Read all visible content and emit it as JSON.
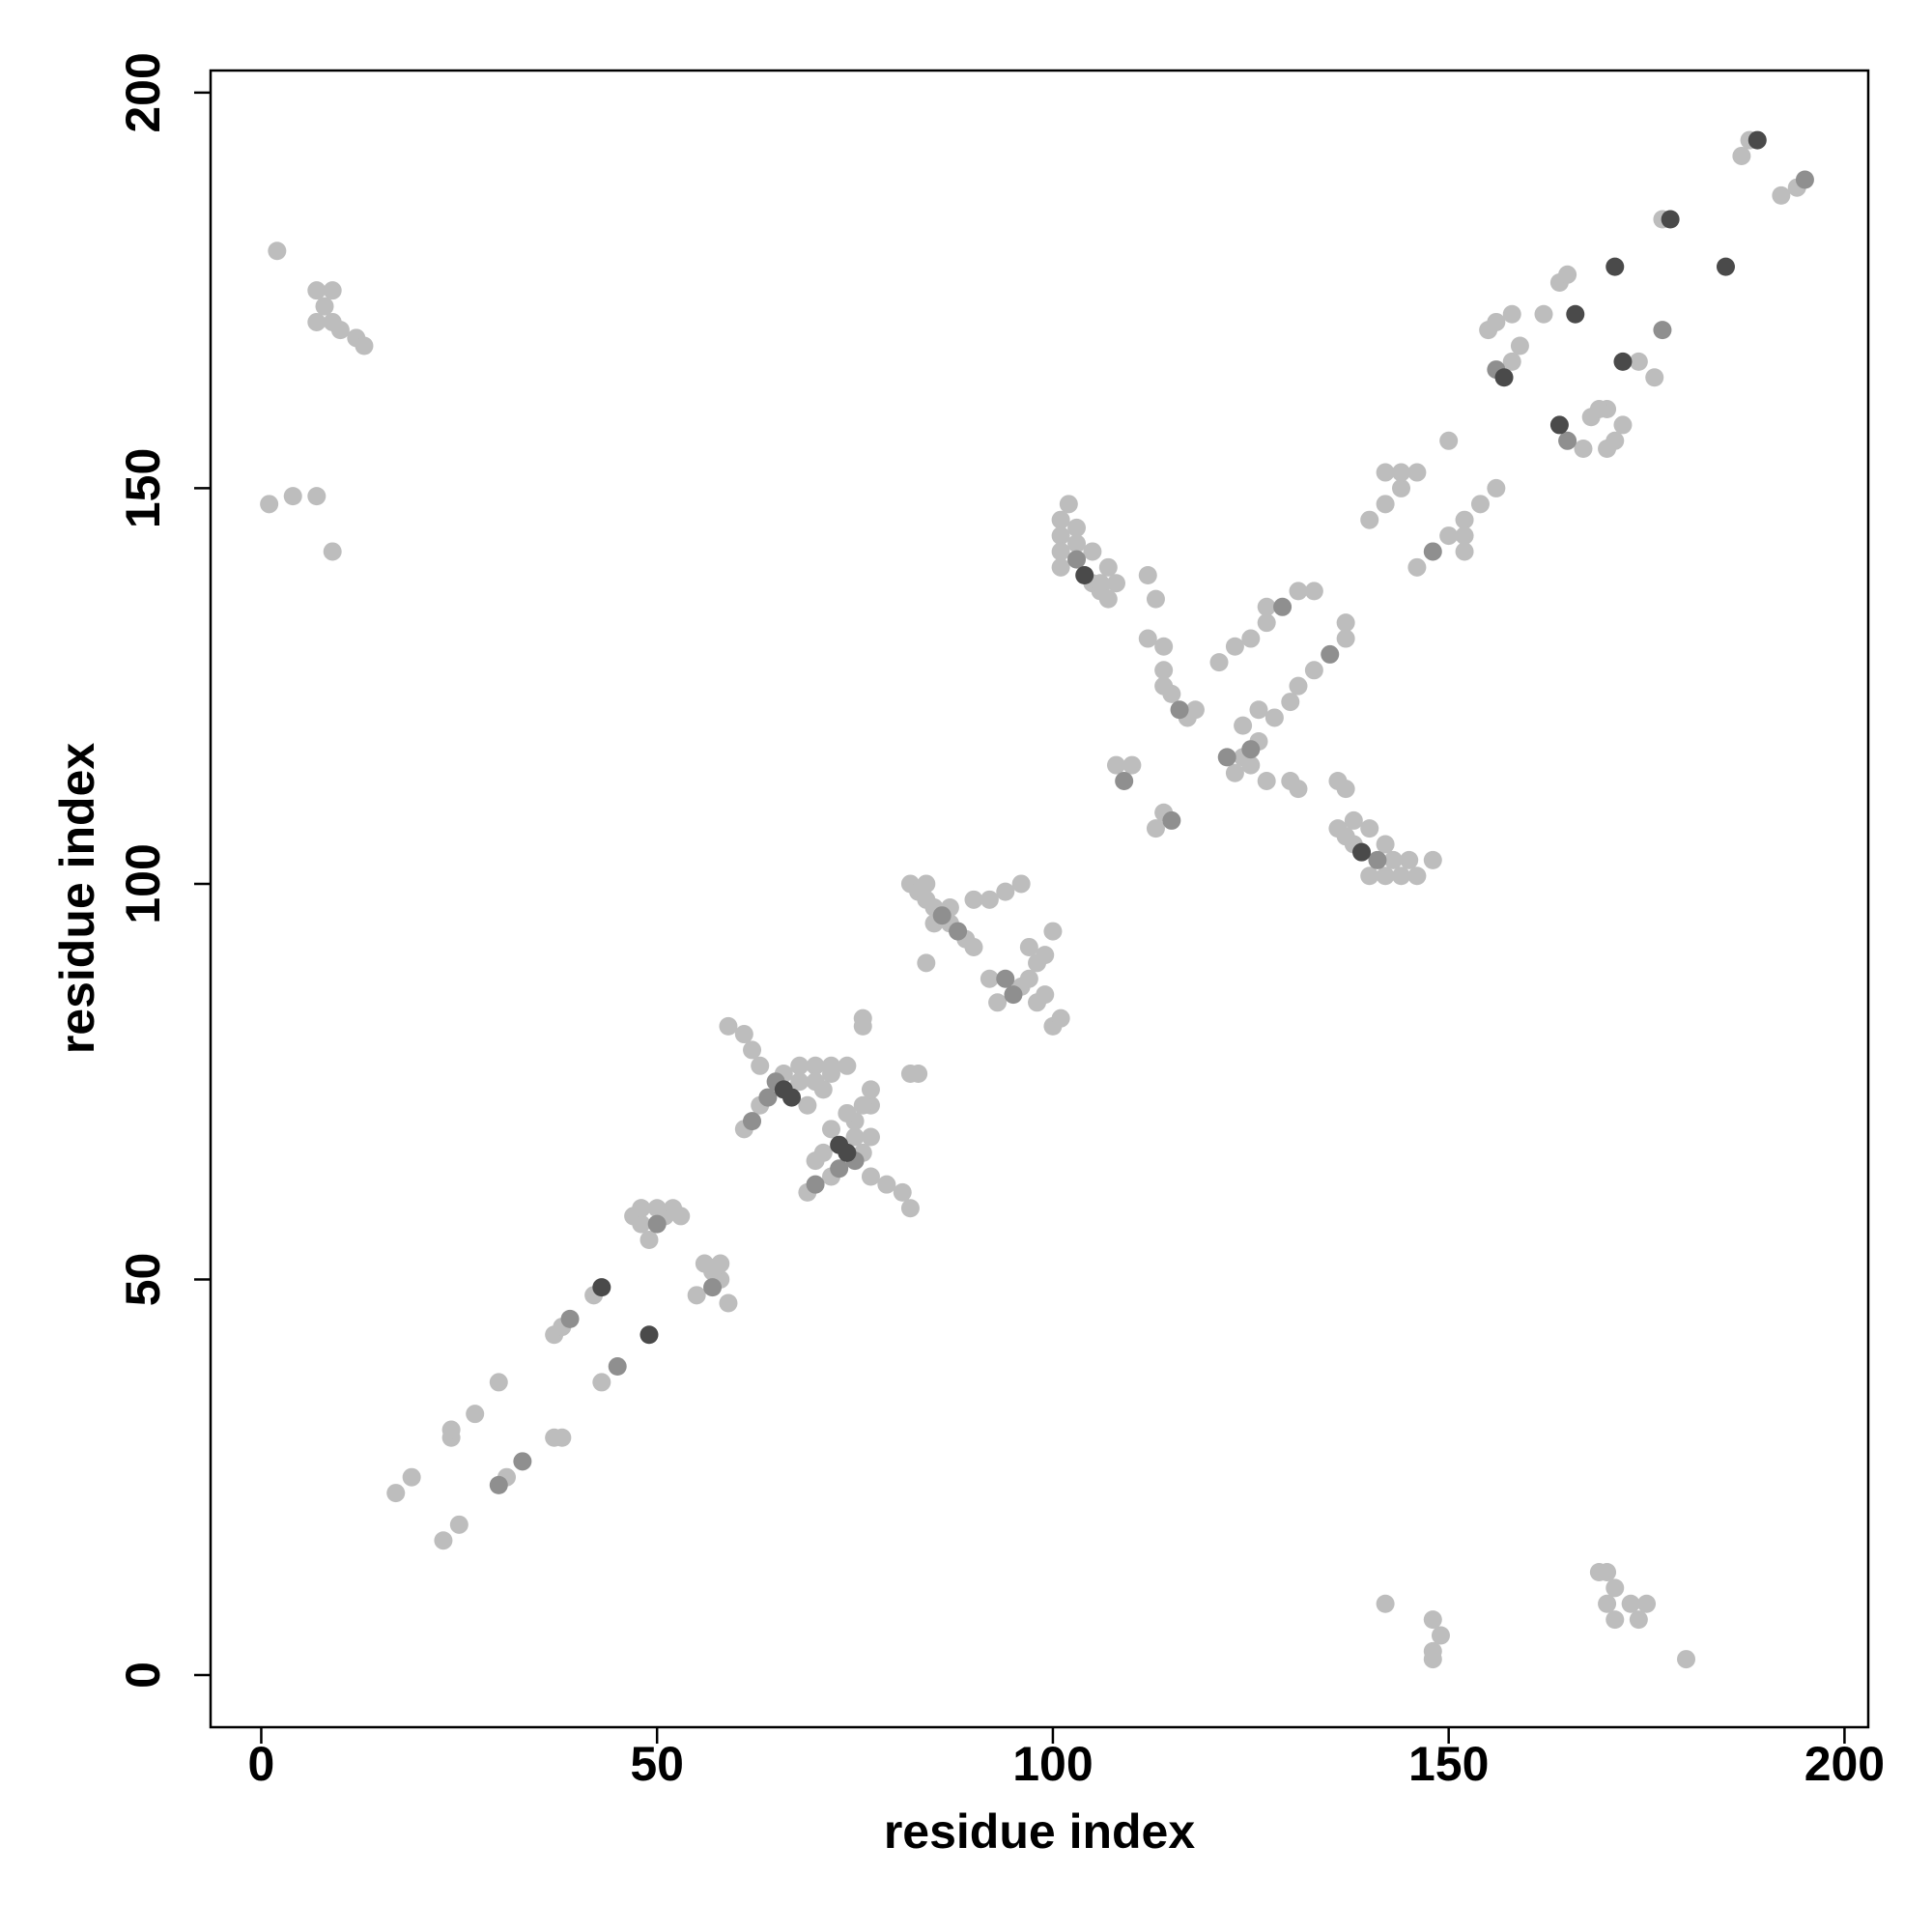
{
  "chart_data": {
    "type": "scatter",
    "x_label": "residue index",
    "y_label": "residue index",
    "xlim": [
      -6.4,
      203
    ],
    "ylim": [
      -6.6,
      202.8
    ],
    "xticks": [
      0,
      50,
      100,
      150,
      200
    ],
    "yticks": [
      0,
      50,
      100,
      150,
      200
    ],
    "grid": false,
    "series": [
      {
        "color": "#bdbdbd",
        "x": [
          2,
          7,
          8,
          9,
          7,
          9,
          10,
          12,
          13,
          1,
          4,
          7,
          9,
          17,
          19,
          24,
          24,
          27,
          30,
          37,
          38,
          42,
          23,
          25,
          31,
          37,
          38,
          43,
          48,
          47,
          48,
          51,
          52,
          48,
          50,
          53,
          49,
          55,
          58,
          57,
          56,
          58,
          59,
          59,
          61,
          62,
          63,
          68,
          70,
          72,
          74,
          63,
          61,
          66,
          68,
          70,
          72,
          69,
          71,
          76,
          76,
          82,
          81,
          79,
          77,
          77,
          77,
          77,
          72,
          69,
          76,
          75,
          75,
          76,
          71,
          72,
          74,
          70,
          82,
          83,
          82,
          83,
          84,
          85,
          87,
          89,
          90,
          84,
          90,
          92,
          94,
          96,
          85,
          87,
          84,
          100,
          96,
          97,
          98,
          99,
          100,
          101,
          98,
          97,
          99,
          93,
          92,
          101,
          101,
          101,
          101,
          102,
          103,
          105,
          106,
          107,
          108,
          103,
          105,
          107,
          112,
          113,
          106,
          146,
          144,
          142,
          140,
          148,
          145,
          138,
          137,
          136,
          138,
          143,
          142,
          140,
          137,
          136,
          108,
          110,
          114,
          113,
          112,
          114,
          114,
          115,
          117,
          118,
          114,
          123,
          124,
          126,
          127,
          130,
          131,
          125,
          121,
          123,
          125,
          127,
          131,
          133,
          127,
          128,
          130,
          131,
          133,
          137,
          137,
          126,
          124,
          140,
          142,
          144,
          146,
          150,
          142,
          144,
          146,
          150,
          152,
          154,
          156,
          152,
          152,
          155,
          158,
          159,
          162,
          164,
          165,
          156,
          158,
          170,
          167,
          168,
          170,
          176,
          174,
          171,
          172,
          169,
          187,
          188,
          192,
          194,
          177,
          142,
          148,
          149,
          148,
          148,
          169,
          170,
          170,
          171,
          171,
          173,
          174,
          175,
          180
        ],
        "y": [
          180,
          175,
          173,
          175,
          171,
          171,
          170,
          169,
          168,
          148,
          149,
          149,
          142,
          23,
          25,
          30,
          31,
          33,
          37,
          43,
          44,
          48,
          17,
          19,
          25,
          30,
          30,
          37,
          57,
          58,
          59,
          58,
          59,
          59,
          59,
          58,
          55,
          48,
          50,
          51,
          52,
          52,
          47,
          82,
          81,
          79,
          77,
          77,
          77,
          77,
          77,
          72,
          69,
          76,
          75,
          75,
          76,
          72,
          74,
          82,
          83,
          59,
          61,
          62,
          63,
          68,
          72,
          74,
          63,
          61,
          66,
          68,
          70,
          72,
          66,
          69,
          71,
          65,
          76,
          76,
          100,
          99,
          98,
          97,
          95,
          93,
          92,
          90,
          98,
          98,
          99,
          100,
          95,
          97,
          100,
          82,
          87,
          88,
          90,
          91,
          94,
          83,
          85,
          92,
          86,
          85,
          88,
          146,
          144,
          142,
          140,
          148,
          145,
          138,
          137,
          136,
          138,
          143,
          142,
          140,
          139,
          136,
          138,
          101,
          101,
          101,
          101,
          103,
          103,
          105,
          106,
          107,
          108,
          103,
          105,
          107,
          112,
          113,
          115,
          115,
          109,
          107,
          131,
          130,
          125,
          124,
          121,
          122,
          127,
          114,
          116,
          118,
          113,
          113,
          112,
          115,
          128,
          130,
          131,
          133,
          137,
          137,
          135,
          121,
          123,
          125,
          127,
          131,
          133,
          122,
          120,
          146,
          148,
          150,
          152,
          156,
          152,
          152,
          140,
          144,
          146,
          148,
          150,
          142,
          144,
          170,
          166,
          168,
          172,
          176,
          177,
          171,
          172,
          155,
          155,
          159,
          160,
          164,
          166,
          156,
          158,
          160,
          192,
          194,
          187,
          188,
          184,
          9,
          7,
          5,
          3,
          2,
          13,
          13,
          9,
          11,
          7,
          9,
          7,
          9,
          2
        ]
      },
      {
        "color": "#8f8f8f",
        "x": [
          50,
          57,
          65,
          64,
          75,
          73,
          70,
          62,
          88,
          94,
          95,
          86,
          103,
          141,
          116,
          122,
          125,
          129,
          135,
          156,
          165,
          148,
          30,
          33,
          45,
          39,
          109,
          115,
          177,
          195
        ],
        "y": [
          57,
          49,
          75,
          73,
          65,
          64,
          62,
          70,
          94,
          88,
          86,
          96,
          141,
          103,
          122,
          116,
          117,
          135,
          129,
          165,
          156,
          142,
          24,
          27,
          39,
          45,
          113,
          108,
          170,
          189
        ]
      },
      {
        "color": "#4a4a4a",
        "x": [
          43,
          49,
          66,
          67,
          74,
          73,
          104,
          139,
          157,
          166,
          172,
          164,
          171,
          189,
          185,
          178
        ],
        "y": [
          49,
          43,
          74,
          73,
          66,
          67,
          139,
          104,
          164,
          172,
          166,
          158,
          178,
          194,
          178,
          184
        ]
      }
    ]
  }
}
